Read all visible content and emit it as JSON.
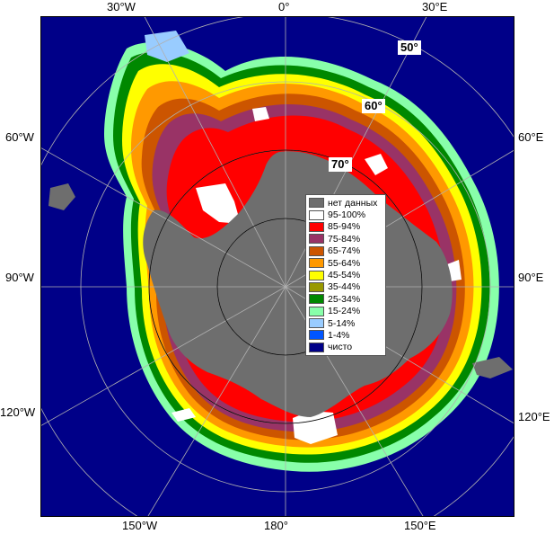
{
  "longitude_labels": {
    "top_left": "30°W",
    "top_center": "0°",
    "top_right": "30°E",
    "left_upper": "60°W",
    "right_upper": "60°E",
    "left_middle": "90°W",
    "right_middle": "90°E",
    "left_lower": "120°W",
    "right_lower": "120°E",
    "bottom_left": "150°W",
    "bottom_center": "180°",
    "bottom_right": "150°E"
  },
  "latitude_labels": {
    "lat50": "50°",
    "lat60": "60°",
    "lat70": "70°"
  },
  "legend": {
    "items": [
      {
        "label": "нет данных",
        "color": "#6e6e6e"
      },
      {
        "label": "95-100%",
        "color": "#ffffff"
      },
      {
        "label": "85-94%",
        "color": "#ff0000"
      },
      {
        "label": "75-84%",
        "color": "#993366"
      },
      {
        "label": "65-74%",
        "color": "#cc5500"
      },
      {
        "label": "55-64%",
        "color": "#ff9900"
      },
      {
        "label": "45-54%",
        "color": "#ffff00"
      },
      {
        "label": "35-44%",
        "color": "#999900"
      },
      {
        "label": "25-34%",
        "color": "#008800"
      },
      {
        "label": "15-24%",
        "color": "#88ffaa"
      },
      {
        "label": "5-14%",
        "color": "#99ccff"
      },
      {
        "label": "1-4%",
        "color": "#0055ff"
      },
      {
        "label": "чисто",
        "color": "#000088"
      }
    ]
  },
  "colors": {
    "ocean": "#000088",
    "land": "#6e6e6e",
    "grid": "#b0b0b0"
  }
}
